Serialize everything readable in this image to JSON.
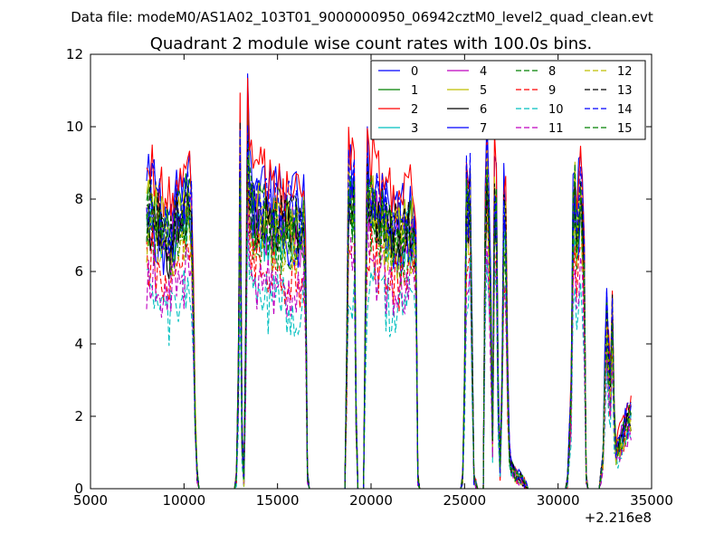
{
  "figure": {
    "suptitle": "Data file: modeM0/AS1A02_103T01_9000000950_06942cztM0_level2_quad_clean.evt"
  },
  "chart_data": {
    "type": "line",
    "title": "Quadrant 2 module wise count rates with 100.0s bins.",
    "xlabel": "",
    "ylabel": "",
    "x_offset_label": "+2.216e8",
    "xlim": [
      5000,
      35000
    ],
    "ylim": [
      0,
      12
    ],
    "x_ticks": [
      5000,
      10000,
      15000,
      20000,
      25000,
      30000,
      35000
    ],
    "x_tick_labels": [
      "5000",
      "10000",
      "15000",
      "20000",
      "25000",
      "30000",
      "35000"
    ],
    "y_ticks": [
      0,
      2,
      4,
      6,
      8,
      10,
      12
    ],
    "y_tick_labels": [
      "0",
      "2",
      "4",
      "6",
      "8",
      "10",
      "12"
    ],
    "grid": false,
    "legend_position": "top-right",
    "legend_columns": 4,
    "bin_seconds": 100,
    "x_start": 8000,
    "x_end": 33900,
    "profile_knots": [
      [
        8000,
        7.6
      ],
      [
        8300,
        7.9
      ],
      [
        8700,
        7.4
      ],
      [
        9000,
        7.1
      ],
      [
        9300,
        6.9
      ],
      [
        9600,
        7.5
      ],
      [
        9800,
        7.3
      ],
      [
        10000,
        7.7
      ],
      [
        10200,
        7.9
      ],
      [
        10400,
        7.6
      ],
      [
        10500,
        5.0
      ],
      [
        10600,
        2.0
      ],
      [
        10700,
        0.4
      ],
      [
        10800,
        0
      ],
      [
        12700,
        0
      ],
      [
        12800,
        0.3
      ],
      [
        12900,
        3.0
      ],
      [
        13000,
        9.3
      ],
      [
        13100,
        1.5
      ],
      [
        13200,
        0.2
      ],
      [
        13300,
        4.0
      ],
      [
        13400,
        10.0
      ],
      [
        13500,
        8.3
      ],
      [
        13800,
        7.6
      ],
      [
        14200,
        7.8
      ],
      [
        14600,
        7.4
      ],
      [
        15000,
        7.5
      ],
      [
        15400,
        7.3
      ],
      [
        15800,
        7.4
      ],
      [
        16200,
        7.2
      ],
      [
        16400,
        7.5
      ],
      [
        16500,
        6.0
      ],
      [
        16600,
        0.4
      ],
      [
        16700,
        0
      ],
      [
        18600,
        0
      ],
      [
        18700,
        3.5
      ],
      [
        18800,
        8.5
      ],
      [
        19000,
        8.0
      ],
      [
        19100,
        8.8
      ],
      [
        19200,
        2.0
      ],
      [
        19300,
        0
      ],
      [
        19600,
        0
      ],
      [
        19700,
        5.0
      ],
      [
        19800,
        8.6
      ],
      [
        20000,
        8.1
      ],
      [
        20400,
        7.7
      ],
      [
        20800,
        7.5
      ],
      [
        21200,
        7.3
      ],
      [
        21600,
        7.1
      ],
      [
        22000,
        7.4
      ],
      [
        22300,
        7.2
      ],
      [
        22400,
        6.5
      ],
      [
        22500,
        0.3
      ],
      [
        22600,
        0
      ],
      [
        24800,
        0
      ],
      [
        24900,
        0.3
      ],
      [
        25000,
        3.0
      ],
      [
        25100,
        8.2
      ],
      [
        25200,
        7.5
      ],
      [
        25300,
        8.4
      ],
      [
        25400,
        4.0
      ],
      [
        25500,
        0.3
      ],
      [
        25700,
        0
      ],
      [
        26000,
        0
      ],
      [
        26100,
        7.0
      ],
      [
        26200,
        8.9
      ],
      [
        26300,
        7.6
      ],
      [
        26400,
        5.0
      ],
      [
        26500,
        1.5
      ],
      [
        26600,
        8.0
      ],
      [
        26700,
        7.8
      ],
      [
        26800,
        2.5
      ],
      [
        26900,
        0.5
      ],
      [
        27000,
        2.5
      ],
      [
        27100,
        7.6
      ],
      [
        27200,
        7.2
      ],
      [
        27300,
        3.0
      ],
      [
        27400,
        1.0
      ],
      [
        27500,
        0.6
      ],
      [
        27700,
        0.4
      ],
      [
        28000,
        0.3
      ],
      [
        28300,
        0.1
      ],
      [
        28400,
        0
      ],
      [
        30400,
        0
      ],
      [
        30500,
        0.2
      ],
      [
        30700,
        2.5
      ],
      [
        30800,
        7.3
      ],
      [
        30900,
        8.3
      ],
      [
        31000,
        7.4
      ],
      [
        31100,
        7.9
      ],
      [
        31200,
        8.8
      ],
      [
        31300,
        7.4
      ],
      [
        31400,
        6.0
      ],
      [
        31500,
        0.3
      ],
      [
        31600,
        0
      ],
      [
        32200,
        0
      ],
      [
        32400,
        0.8
      ],
      [
        32500,
        3.0
      ],
      [
        32600,
        4.6
      ],
      [
        32700,
        3.5
      ],
      [
        32800,
        2.8
      ],
      [
        32900,
        4.8
      ],
      [
        33000,
        2.0
      ],
      [
        33100,
        1.0
      ],
      [
        33300,
        1.3
      ],
      [
        33500,
        1.6
      ],
      [
        33700,
        1.9
      ],
      [
        33900,
        2.0
      ]
    ],
    "series": [
      {
        "name": "0",
        "color": "#0000ff",
        "dash": "solid",
        "scale": 1.09
      },
      {
        "name": "1",
        "color": "#008000",
        "dash": "solid",
        "scale": 1.01
      },
      {
        "name": "2",
        "color": "#ff0000",
        "dash": "solid",
        "scale": 1.12
      },
      {
        "name": "3",
        "color": "#00bfbf",
        "dash": "solid",
        "scale": 0.93
      },
      {
        "name": "4",
        "color": "#bf00bf",
        "dash": "solid",
        "scale": 0.96
      },
      {
        "name": "5",
        "color": "#bfbf00",
        "dash": "solid",
        "scale": 1.0
      },
      {
        "name": "6",
        "color": "#000000",
        "dash": "solid",
        "scale": 0.95
      },
      {
        "name": "7",
        "color": "#0000ff",
        "dash": "solid",
        "scale": 0.93
      },
      {
        "name": "8",
        "color": "#008000",
        "dash": "dashed",
        "scale": 0.9
      },
      {
        "name": "9",
        "color": "#ff0000",
        "dash": "dashed",
        "scale": 0.8
      },
      {
        "name": "10",
        "color": "#00bfbf",
        "dash": "dashed",
        "scale": 0.68
      },
      {
        "name": "11",
        "color": "#bf00bf",
        "dash": "dashed",
        "scale": 0.76
      },
      {
        "name": "12",
        "color": "#bfbf00",
        "dash": "dashed",
        "scale": 0.92
      },
      {
        "name": "13",
        "color": "#000000",
        "dash": "dashed",
        "scale": 0.99
      },
      {
        "name": "14",
        "color": "#0000ff",
        "dash": "dashed",
        "scale": 1.04
      },
      {
        "name": "15",
        "color": "#008000",
        "dash": "dashed",
        "scale": 0.97
      }
    ]
  }
}
